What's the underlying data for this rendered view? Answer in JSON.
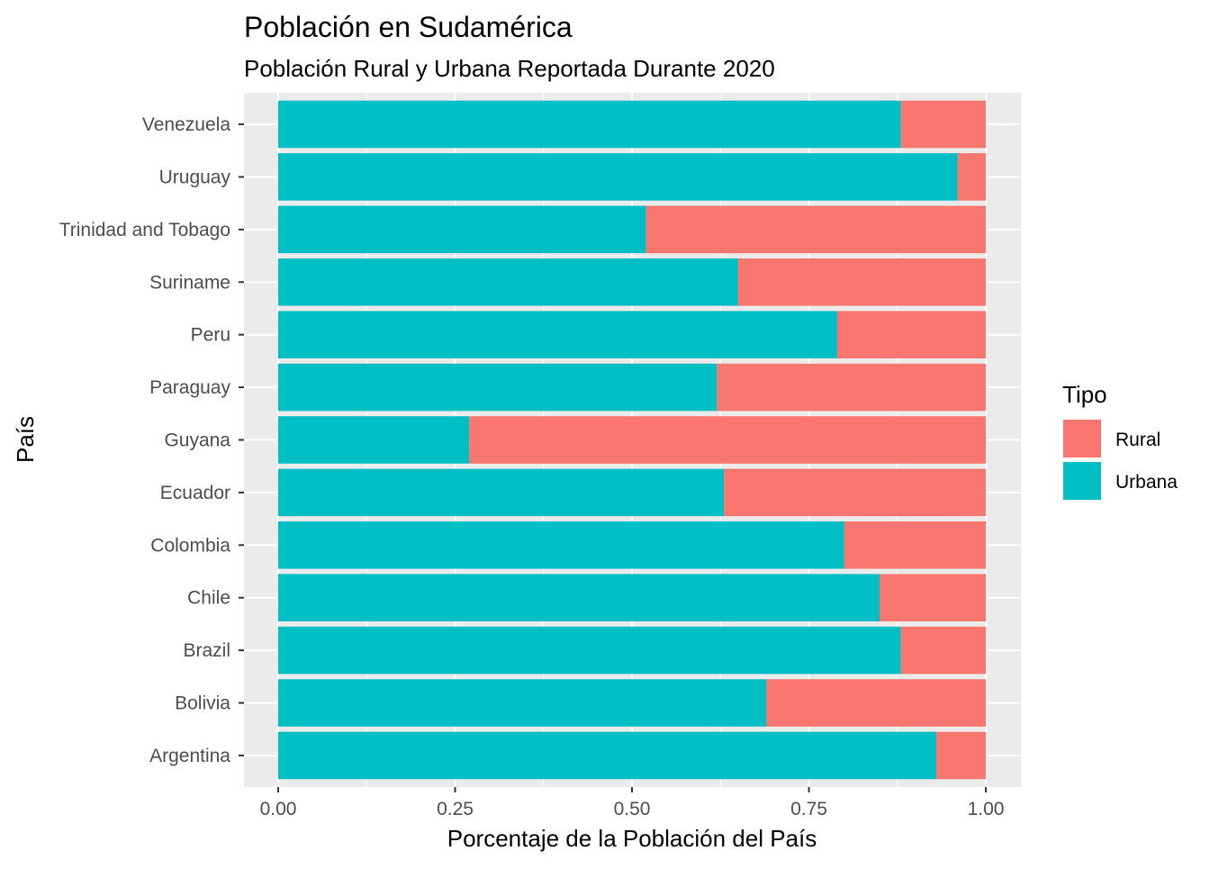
{
  "chart_data": {
    "type": "bar",
    "orientation": "horizontal",
    "stacked": "fill",
    "title": "Población en Sudamérica",
    "subtitle": "Población Rural y Urbana Reportada Durante 2020",
    "xlabel": "Porcentaje de la Población del País",
    "ylabel": "País",
    "xlim": [
      0,
      1
    ],
    "xticks": [
      "0.00",
      "0.25",
      "0.50",
      "0.75",
      "1.00"
    ],
    "grid": true,
    "legend": {
      "title": "Tipo",
      "position": "right"
    },
    "categories": [
      "Argentina",
      "Bolivia",
      "Brazil",
      "Chile",
      "Colombia",
      "Ecuador",
      "Guyana",
      "Paraguay",
      "Peru",
      "Suriname",
      "Trinidad and Tobago",
      "Uruguay",
      "Venezuela"
    ],
    "series": [
      {
        "name": "Rural",
        "color": "#F8766D",
        "values": [
          0.07,
          0.31,
          0.12,
          0.15,
          0.2,
          0.37,
          0.73,
          0.38,
          0.21,
          0.35,
          0.48,
          0.04,
          0.12
        ]
      },
      {
        "name": "Urbana",
        "color": "#00BFC4",
        "values": [
          0.93,
          0.69,
          0.88,
          0.85,
          0.8,
          0.63,
          0.27,
          0.62,
          0.79,
          0.65,
          0.52,
          0.96,
          0.88
        ]
      }
    ]
  }
}
